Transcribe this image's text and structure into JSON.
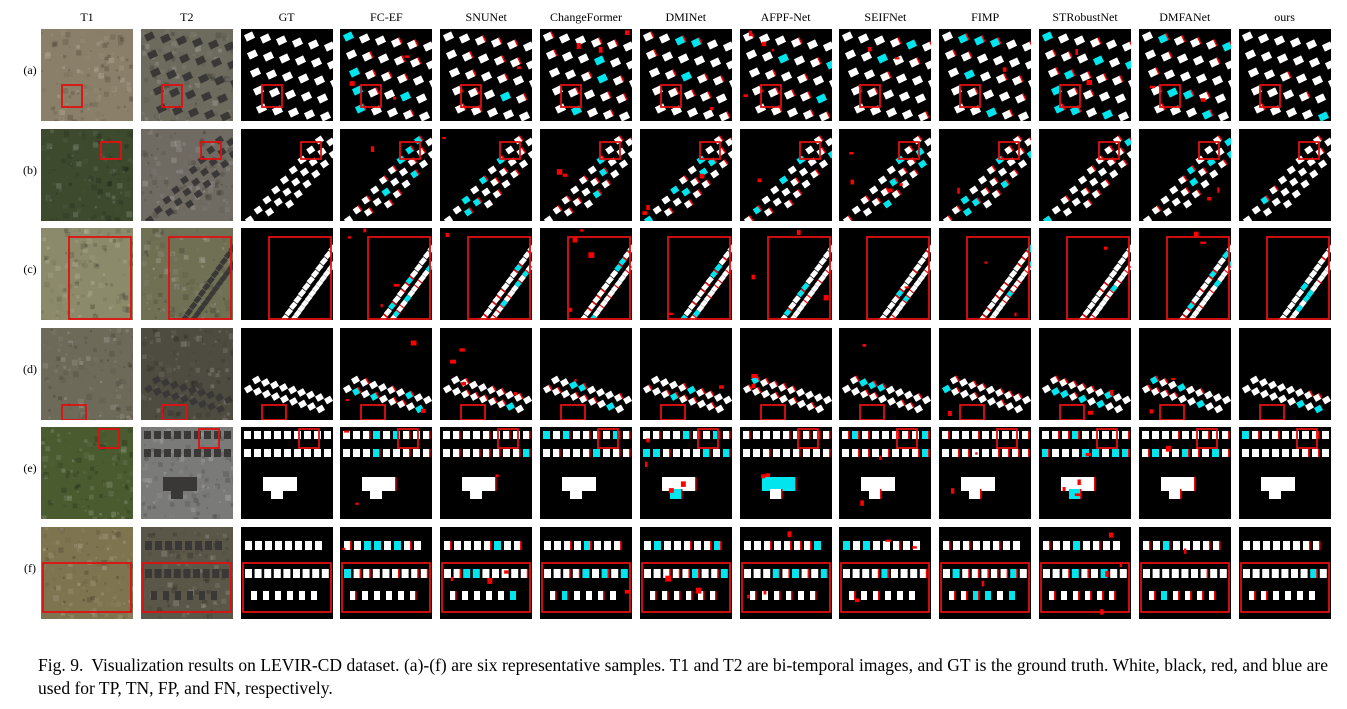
{
  "figure": {
    "columns": [
      "T1",
      "T2",
      "GT",
      "FC-EF",
      "SNUNet",
      "ChangeFormer",
      "DMINet",
      "AFPF-Net",
      "SEIFNet",
      "FIMP",
      "STRobustNet",
      "DMFANet",
      "ours"
    ],
    "rows": [
      "(a)",
      "(b)",
      "(c)",
      "(d)",
      "(e)",
      "(f)"
    ]
  },
  "caption": {
    "label": "Fig. 9.",
    "text": "Visualization results on LEVIR-CD dataset. (a)-(f) are six representative samples. T1 and T2 are bi-temporal images, and GT is the ground truth. White, black, red, and blue are used for TP, TN, FP, and FN, respectively."
  },
  "colors": {
    "tp": "#ffffff",
    "tn": "#000000",
    "fp": "#ff0000",
    "fn": "#00e5ee",
    "highlight_box": "#e01010"
  }
}
